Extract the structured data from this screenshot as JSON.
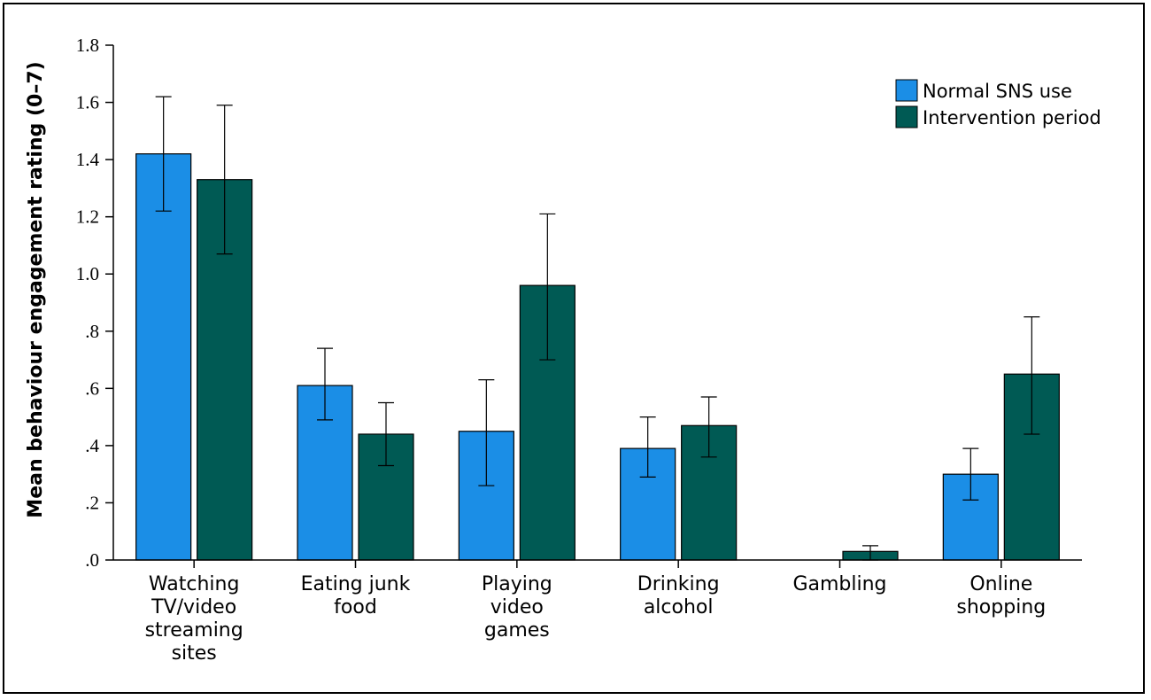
{
  "chart_data": {
    "type": "bar",
    "title": "",
    "xlabel": "",
    "ylabel": "Mean behaviour engagement rating (0–7)",
    "ylim": [
      0,
      1.8
    ],
    "yticks": [
      ".0",
      ".2",
      ".4",
      ".6",
      ".8",
      "1.0",
      "1.2",
      "1.4",
      "1.6",
      "1.8"
    ],
    "grid": false,
    "legend_position": "top-right",
    "categories": [
      [
        "Watching",
        "TV/video",
        "streaming",
        "sites"
      ],
      [
        "Eating junk",
        "food"
      ],
      [
        "Playing",
        "video",
        "games"
      ],
      [
        "Drinking",
        "alcohol"
      ],
      [
        "Gambling"
      ],
      [
        "Online",
        "shopping"
      ]
    ],
    "series": [
      {
        "name": "Normal SNS use",
        "color": "#1b8ee6",
        "values": [
          1.42,
          0.61,
          0.45,
          0.39,
          0.0,
          0.3
        ],
        "error_low": [
          1.22,
          0.49,
          0.26,
          0.29,
          0.0,
          0.21
        ],
        "error_high": [
          1.62,
          0.74,
          0.63,
          0.5,
          0.0,
          0.39
        ]
      },
      {
        "name": "Intervention period",
        "color": "#005a54",
        "values": [
          1.33,
          0.44,
          0.96,
          0.47,
          0.03,
          0.65
        ],
        "error_low": [
          1.07,
          0.33,
          0.7,
          0.36,
          0.0,
          0.44
        ],
        "error_high": [
          1.59,
          0.55,
          1.21,
          0.57,
          0.05,
          0.85
        ]
      }
    ]
  }
}
